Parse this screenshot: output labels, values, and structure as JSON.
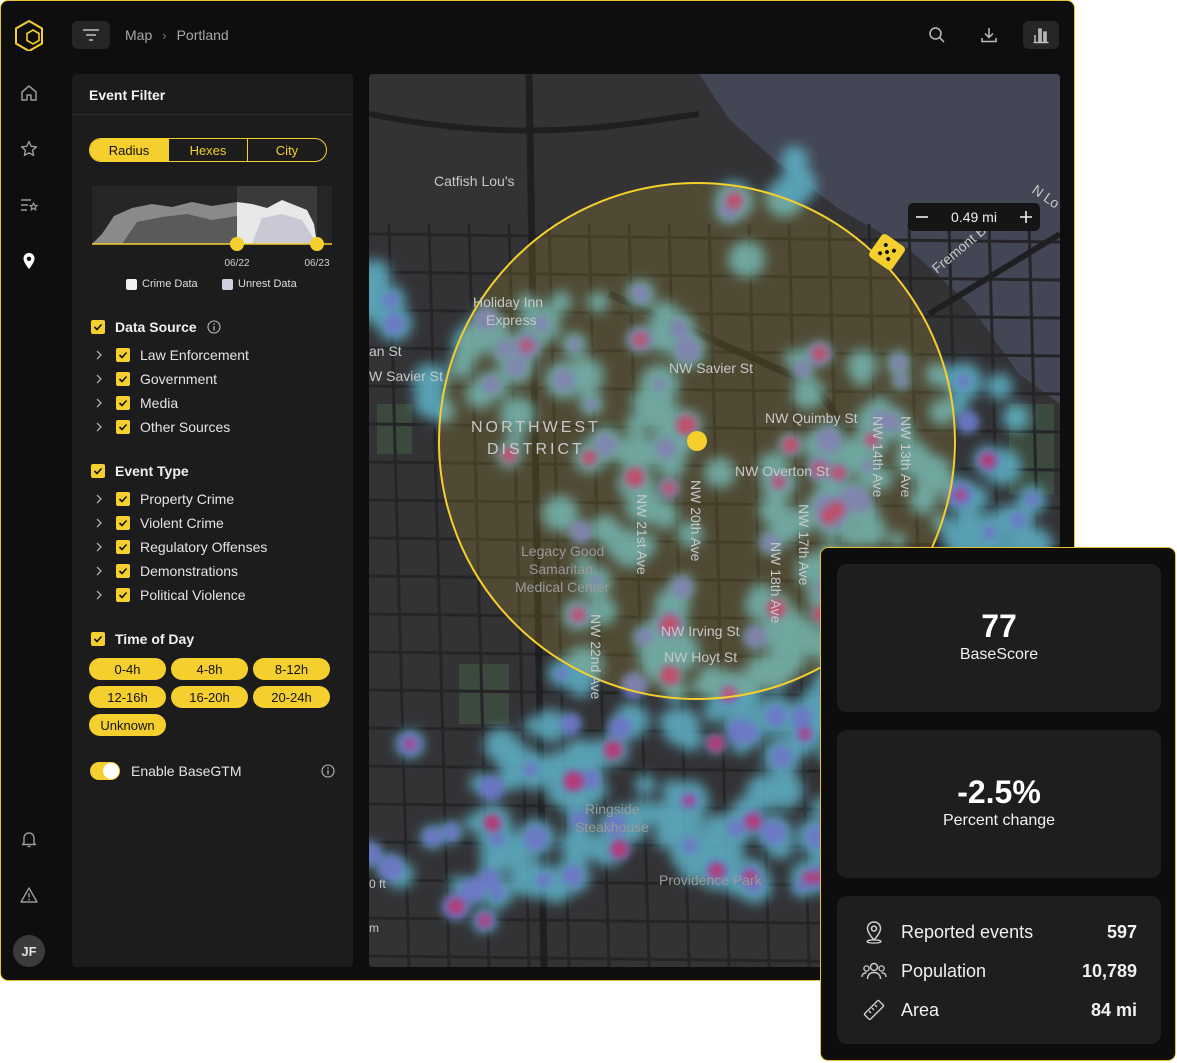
{
  "breadcrumb": {
    "root": "Map",
    "current": "Portland"
  },
  "filter": {
    "title": "Event Filter",
    "modes": [
      "Radius",
      "Hexes",
      "City"
    ],
    "active_mode": "Radius",
    "timeline": {
      "start_label": "06/22",
      "end_label": "06/23"
    },
    "legend": [
      "Crime Data",
      "Unrest Data"
    ],
    "data_source": {
      "title": "Data Source",
      "items": [
        "Law Enforcement",
        "Government",
        "Media",
        "Other Sources"
      ]
    },
    "event_type": {
      "title": "Event Type",
      "items": [
        "Property Crime",
        "Violent Crime",
        "Regulatory Offenses",
        "Demonstrations",
        "Political Violence"
      ]
    },
    "time_of_day": {
      "title": "Time of Day",
      "slots": [
        "0-4h",
        "4-8h",
        "8-12h",
        "12-16h",
        "16-20h",
        "20-24h",
        "Unknown"
      ]
    },
    "basegtm": {
      "label": "Enable BaseGTM",
      "enabled": true
    }
  },
  "map": {
    "radius_value": "0.49 mi",
    "labels": {
      "catfish": "Catfish Lou's",
      "holiday1": "Holiday Inn",
      "holiday2": "Express",
      "northwest1": "NORTHWEST",
      "northwest2": "DISTRICT",
      "savier_e": "NW Savier St",
      "savier_w": "W Savier St",
      "an_st": "an St",
      "quimby": "NW Quimby St",
      "overton": "NW Overton St",
      "irving": "NW Irving St",
      "hoyt": "NW Hoyt St",
      "legacy1": "Legacy Good",
      "legacy2": "Samaritan",
      "legacy3": "Medical Center",
      "ringside1": "Ringside",
      "ringside2": "Steakhouse",
      "providence": "Providence Park",
      "nw21": "NW 21st Ave",
      "nw20": "NW 20th Ave",
      "nw22": "NW 22nd Ave",
      "nw18": "NW 18th Ave",
      "nw17": "NW 17th Ave",
      "nw14": "NW 14th Ave",
      "nw13": "NW 13th Ave",
      "fremont": "Fremont Bridge",
      "nlo": "N Lo",
      "scale_ft": "0 ft",
      "scale_m": "m"
    }
  },
  "stats": {
    "score": {
      "value": "77",
      "label": "BaseScore"
    },
    "change": {
      "value": "-2.5%",
      "label": "Percent change"
    },
    "rows": [
      {
        "icon": "location-pin-icon",
        "label": "Reported events",
        "value": "597"
      },
      {
        "icon": "people-icon",
        "label": "Population",
        "value": "10,789"
      },
      {
        "icon": "ruler-icon",
        "label": "Area",
        "value": "84 mi"
      }
    ]
  },
  "user": {
    "initials": "JF"
  },
  "colors": {
    "accent": "#f5cf2e",
    "background": "#0e0e0e",
    "panel": "#1c1c1c",
    "heat_low": "#5fb3c9",
    "heat_high": "#c0306a"
  }
}
